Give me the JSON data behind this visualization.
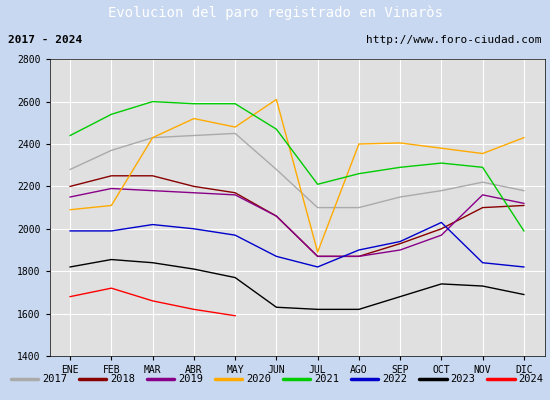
{
  "title": "Evolucion del paro registrado en Vinaròs",
  "subtitle_left": "2017 - 2024",
  "subtitle_right": "http://www.foro-ciudad.com",
  "months": [
    "ENE",
    "FEB",
    "MAR",
    "ABR",
    "MAY",
    "JUN",
    "JUL",
    "AGO",
    "SEP",
    "OCT",
    "NOV",
    "DIC"
  ],
  "ylim": [
    1400,
    2800
  ],
  "yticks": [
    1400,
    1600,
    1800,
    2000,
    2200,
    2400,
    2600,
    2800
  ],
  "series": {
    "2017": {
      "color": "#aaaaaa",
      "data": [
        2280,
        2370,
        2430,
        2440,
        2450,
        2280,
        2100,
        2100,
        2150,
        2180,
        2220,
        2180
      ]
    },
    "2018": {
      "color": "#880000",
      "data": [
        2200,
        2250,
        2250,
        2200,
        2170,
        2060,
        1870,
        1870,
        1930,
        2000,
        2100,
        2110
      ]
    },
    "2019": {
      "color": "#880088",
      "data": [
        2150,
        2190,
        2180,
        2170,
        2160,
        2060,
        1870,
        1870,
        1900,
        1970,
        2160,
        2120
      ]
    },
    "2020": {
      "color": "#ffaa00",
      "data": [
        2090,
        2110,
        2430,
        2520,
        2480,
        2610,
        1890,
        2400,
        2405,
        2380,
        2355,
        2430
      ]
    },
    "2021": {
      "color": "#00cc00",
      "data": [
        2440,
        2540,
        2600,
        2590,
        2590,
        2470,
        2210,
        2260,
        2290,
        2310,
        2290,
        1990
      ]
    },
    "2022": {
      "color": "#0000cc",
      "data": [
        1990,
        1990,
        2020,
        2000,
        1970,
        1870,
        1820,
        1900,
        1940,
        2030,
        1840,
        1820
      ]
    },
    "2023": {
      "color": "#000000",
      "data": [
        1820,
        1855,
        1840,
        1810,
        1770,
        1630,
        1620,
        1620,
        1680,
        1740,
        1730,
        1690
      ]
    },
    "2024": {
      "color": "#ff0000",
      "data": [
        1680,
        1720,
        1660,
        1620,
        1590,
        null,
        null,
        null,
        null,
        null,
        null,
        null
      ]
    }
  },
  "title_bg": "#5b8dd9",
  "title_color": "white",
  "plot_bg": "#e0e0e0",
  "grid_color": "white",
  "outer_bg": "#c8d8f0"
}
